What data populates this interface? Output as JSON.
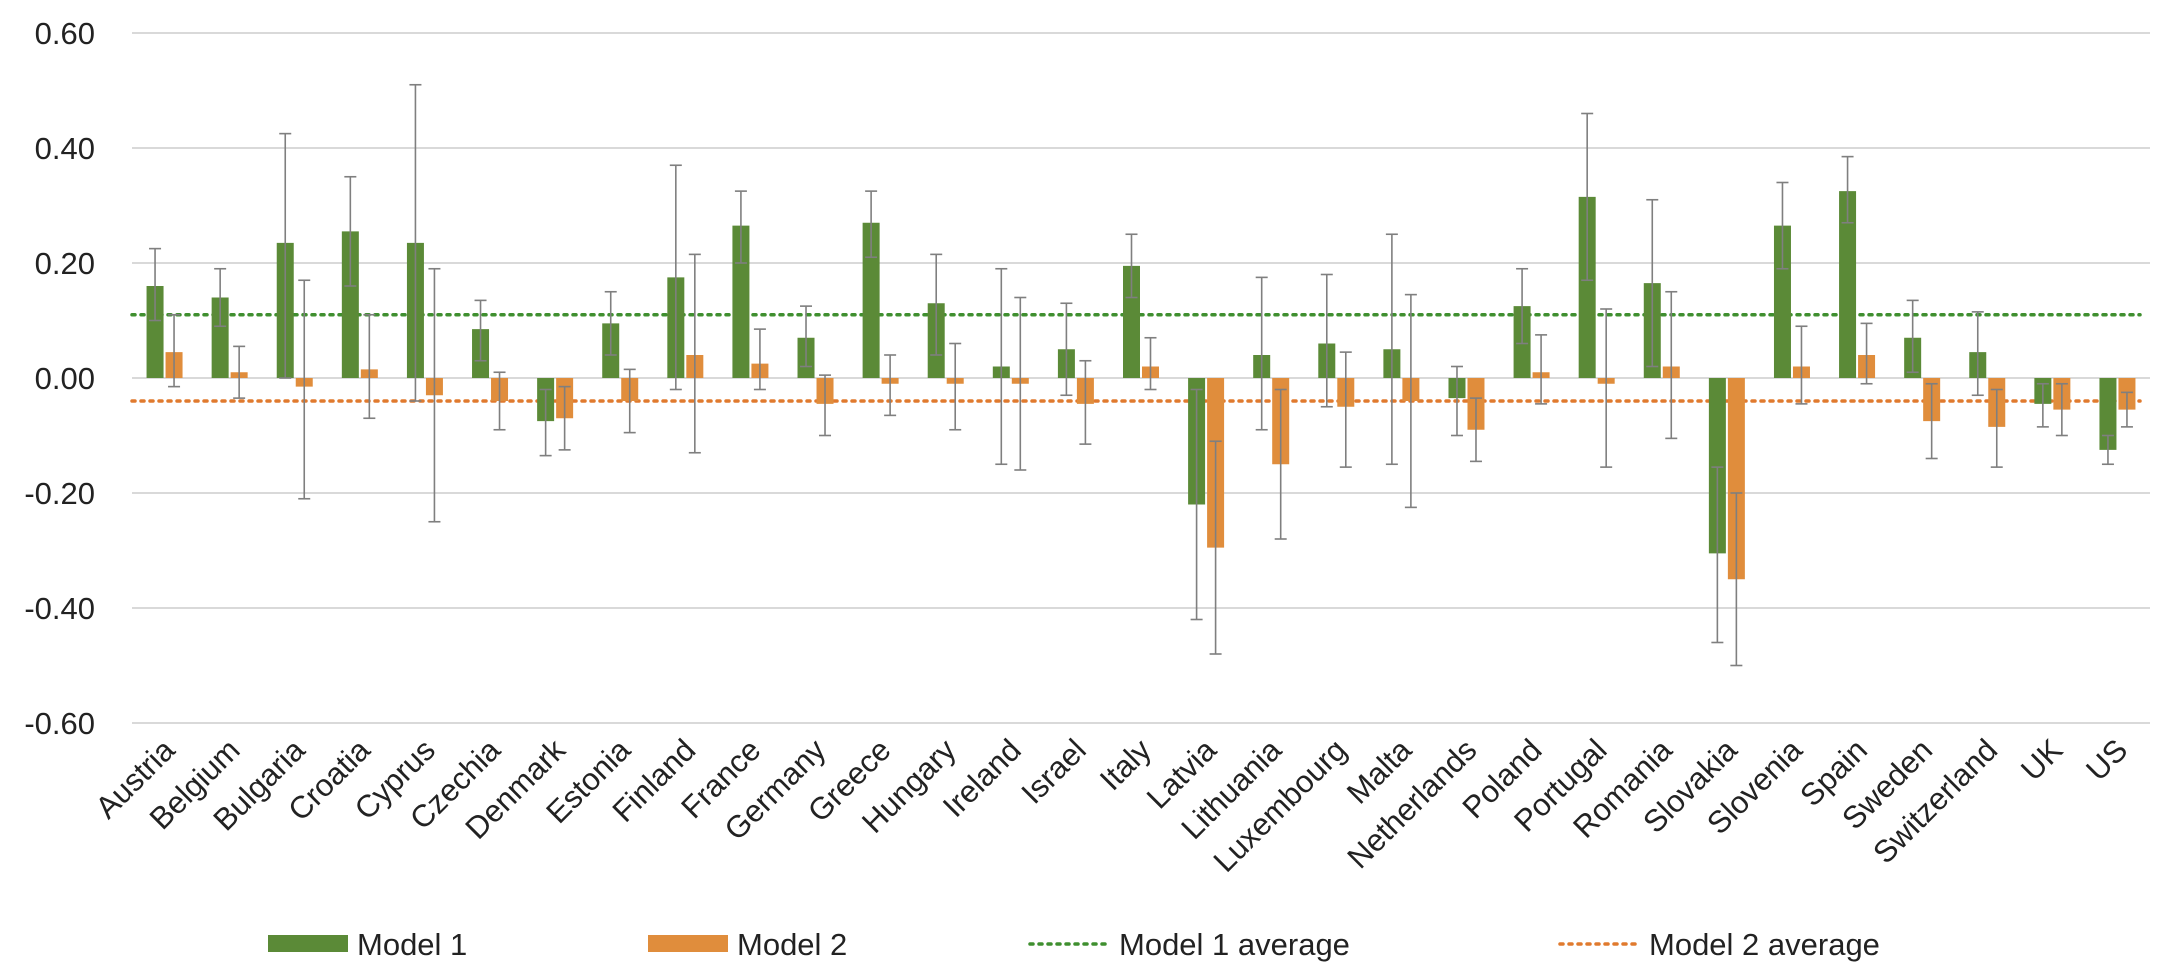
{
  "chart_data": {
    "type": "bar",
    "title": "",
    "xlabel": "",
    "ylabel": "",
    "ylim": [
      -0.6,
      0.6
    ],
    "yticks": [
      -0.6,
      -0.4,
      -0.2,
      0.0,
      0.2,
      0.4,
      0.6
    ],
    "ytick_labels": [
      "-0.60",
      "-0.40",
      "-0.20",
      "0.00",
      "0.20",
      "0.40",
      "0.60"
    ],
    "grid": true,
    "legend_position": "bottom",
    "categories": [
      "Austria",
      "Belgium",
      "Bulgaria",
      "Croatia",
      "Cyprus",
      "Czechia",
      "Denmark",
      "Estonia",
      "Finland",
      "France",
      "Germany",
      "Greece",
      "Hungary",
      "Ireland",
      "Israel",
      "Italy",
      "Latvia",
      "Lithuania",
      "Luxembourg",
      "Malta",
      "Netherlands",
      "Poland",
      "Portugal",
      "Romania",
      "Slovakia",
      "Slovenia",
      "Spain",
      "Sweden",
      "Switzerland",
      "UK",
      "US"
    ],
    "series": [
      {
        "name": "Model 1",
        "color": "#5b8a37",
        "values": [
          0.16,
          0.14,
          0.235,
          0.255,
          0.235,
          0.085,
          -0.075,
          0.095,
          0.175,
          0.265,
          0.07,
          0.27,
          0.13,
          0.02,
          0.05,
          0.195,
          -0.22,
          0.04,
          0.06,
          0.05,
          -0.035,
          0.125,
          0.315,
          0.165,
          -0.305,
          0.265,
          0.325,
          0.07,
          0.045,
          -0.045,
          -0.125
        ],
        "error_low": [
          0.1,
          0.09,
          0.0,
          0.16,
          -0.04,
          0.03,
          -0.135,
          0.04,
          -0.02,
          0.2,
          0.02,
          0.21,
          0.04,
          -0.15,
          -0.03,
          0.14,
          -0.42,
          -0.09,
          -0.05,
          -0.15,
          -0.1,
          0.06,
          0.17,
          0.02,
          -0.46,
          0.19,
          0.27,
          0.01,
          -0.03,
          -0.085,
          -0.15
        ],
        "error_high": [
          0.225,
          0.19,
          0.425,
          0.35,
          0.51,
          0.135,
          -0.02,
          0.15,
          0.37,
          0.325,
          0.125,
          0.325,
          0.215,
          0.19,
          0.13,
          0.25,
          -0.02,
          0.175,
          0.18,
          0.25,
          0.02,
          0.19,
          0.46,
          0.31,
          -0.155,
          0.34,
          0.385,
          0.135,
          0.115,
          -0.01,
          -0.1
        ]
      },
      {
        "name": "Model 2",
        "color": "#e08d3c",
        "values": [
          0.045,
          0.01,
          -0.015,
          0.015,
          -0.03,
          -0.04,
          -0.07,
          -0.04,
          0.04,
          0.025,
          -0.045,
          -0.01,
          -0.01,
          -0.01,
          -0.045,
          0.02,
          -0.295,
          -0.15,
          -0.05,
          -0.04,
          -0.09,
          0.01,
          -0.01,
          0.02,
          -0.35,
          0.02,
          0.04,
          -0.075,
          -0.085,
          -0.055,
          -0.055
        ],
        "error_low": [
          -0.015,
          -0.035,
          -0.21,
          -0.07,
          -0.25,
          -0.09,
          -0.125,
          -0.095,
          -0.13,
          -0.02,
          -0.1,
          -0.065,
          -0.09,
          -0.16,
          -0.115,
          -0.02,
          -0.48,
          -0.28,
          -0.155,
          -0.225,
          -0.145,
          -0.045,
          -0.155,
          -0.105,
          -0.5,
          -0.045,
          -0.01,
          -0.14,
          -0.155,
          -0.1,
          -0.085
        ],
        "error_high": [
          0.11,
          0.055,
          0.17,
          0.11,
          0.19,
          0.01,
          -0.015,
          0.015,
          0.215,
          0.085,
          0.005,
          0.04,
          0.06,
          0.14,
          0.03,
          0.07,
          -0.11,
          -0.02,
          0.045,
          0.145,
          -0.035,
          0.075,
          0.12,
          0.15,
          -0.2,
          0.09,
          0.095,
          -0.01,
          -0.02,
          -0.01,
          -0.025
        ]
      }
    ],
    "reference_lines": [
      {
        "name": "Model 1 average",
        "value": 0.11,
        "color": "#3f8f2f",
        "style": "dotted"
      },
      {
        "name": "Model 2 average",
        "value": -0.04,
        "color": "#e07a2e",
        "style": "dotted"
      }
    ]
  }
}
